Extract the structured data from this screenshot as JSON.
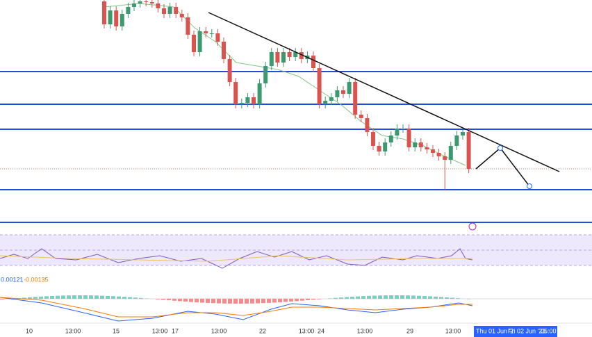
{
  "chart_data": {
    "type": "candlestick",
    "up_color": "#3d9970",
    "down_color": "#d9534f",
    "level_color": "#1e50d6",
    "ylim": [
      0,
      340
    ],
    "open": [
      338,
      305,
      325,
      302,
      320,
      330,
      335,
      338,
      337,
      335,
      328,
      320,
      330,
      320,
      315,
      290,
      265,
      295,
      292,
      292,
      280,
      255,
      222,
      190,
      192,
      200,
      190,
      220,
      245,
      265,
      250,
      265,
      258,
      265,
      255,
      260,
      242,
      190,
      195,
      200,
      210,
      205,
      222,
      175,
      170,
      150,
      130,
      122,
      135,
      145,
      155,
      155,
      128,
      135,
      128,
      125,
      120,
      115,
      110,
      130,
      145,
      150
    ],
    "high": [
      344,
      331,
      331,
      326,
      336,
      341,
      344,
      344,
      343,
      341,
      334,
      336,
      336,
      326,
      321,
      296,
      301,
      301,
      298,
      298,
      286,
      261,
      228,
      198,
      206,
      206,
      226,
      251,
      271,
      271,
      271,
      271,
      271,
      271,
      266,
      266,
      248,
      201,
      206,
      216,
      216,
      228,
      228,
      181,
      176,
      156,
      136,
      141,
      151,
      161,
      161,
      161,
      141,
      141,
      134,
      131,
      126,
      121,
      136,
      151,
      156,
      156
    ],
    "low": [
      299,
      299,
      296,
      296,
      314,
      324,
      329,
      331,
      329,
      322,
      314,
      314,
      314,
      309,
      284,
      259,
      259,
      286,
      286,
      274,
      249,
      216,
      184,
      184,
      186,
      184,
      184,
      214,
      239,
      244,
      244,
      252,
      252,
      249,
      249,
      236,
      184,
      184,
      189,
      194,
      199,
      199,
      169,
      164,
      144,
      124,
      116,
      116,
      129,
      139,
      149,
      122,
      122,
      122,
      119,
      114,
      109,
      67,
      104,
      124,
      139,
      91
    ],
    "close": [
      305,
      325,
      302,
      320,
      330,
      335,
      338,
      337,
      335,
      328,
      320,
      330,
      320,
      315,
      290,
      265,
      295,
      292,
      292,
      280,
      255,
      222,
      190,
      192,
      200,
      190,
      220,
      245,
      265,
      250,
      265,
      258,
      265,
      255,
      260,
      242,
      190,
      195,
      200,
      210,
      205,
      222,
      175,
      170,
      150,
      130,
      122,
      135,
      145,
      155,
      155,
      128,
      135,
      128,
      125,
      120,
      115,
      110,
      130,
      145,
      150,
      97
    ],
    "levels": [
      237,
      190,
      154,
      67,
      20
    ],
    "x_labels": [
      "10",
      "13:00",
      "15",
      "13:00",
      "17",
      "13:00",
      "22",
      "13:00",
      "24",
      "13:00",
      "29",
      "13:00"
    ],
    "future_labels": [
      "Thu 01 Jun '2",
      "Fri 02 Jun '23",
      "05:00"
    ],
    "macd_labels": [
      "0.00121",
      "-0.00135"
    ]
  }
}
